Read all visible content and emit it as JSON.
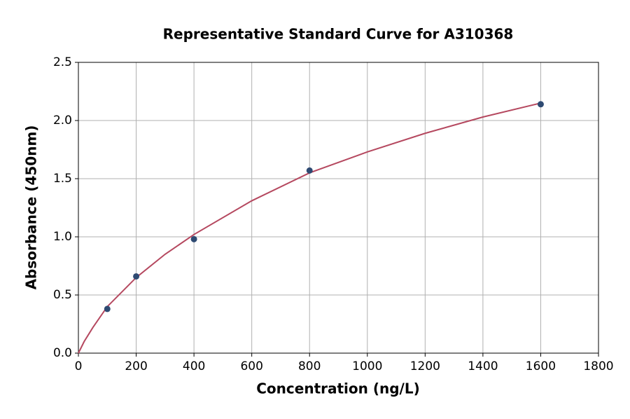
{
  "chart_data": {
    "type": "scatter",
    "title": "Representative Standard Curve for A310368",
    "x_label": "Concentration (ng/L)",
    "y_label": "Absorbance (450nm)",
    "x": [
      100,
      200,
      400,
      800,
      1600
    ],
    "values": [
      0.38,
      0.66,
      0.98,
      1.57,
      2.14
    ],
    "color": "#2e4a72",
    "curve": {
      "x": [
        0,
        20,
        50,
        100,
        200,
        300,
        400,
        600,
        800,
        1000,
        1200,
        1400,
        1600
      ],
      "values": [
        0,
        0.1,
        0.22,
        0.4,
        0.65,
        0.85,
        1.02,
        1.31,
        1.55,
        1.73,
        1.89,
        2.03,
        2.15
      ],
      "color": "#b5485f"
    },
    "xlim": [
      0,
      1800
    ],
    "xticks": [
      0,
      200,
      400,
      600,
      800,
      1000,
      1200,
      1400,
      1600,
      1800
    ],
    "ylim": [
      0,
      2.5
    ],
    "yticks": [
      {
        "value": 0,
        "label": "0.0"
      },
      0.5,
      {
        "value": 1,
        "label": "1.0"
      },
      1.5,
      {
        "value": 2,
        "label": "2.0"
      },
      2.5
    ],
    "grid": true
  }
}
